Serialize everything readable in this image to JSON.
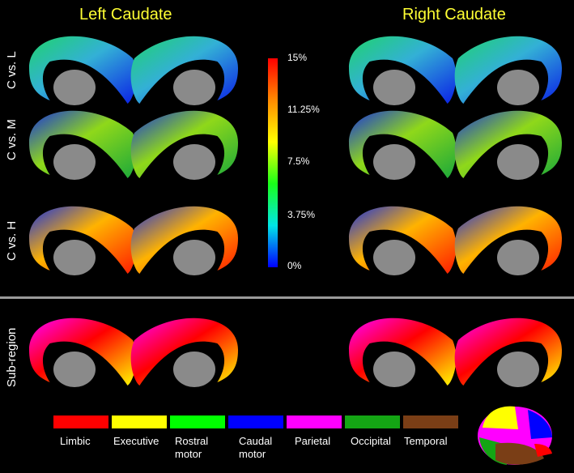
{
  "headings": {
    "left": "Left Caudate",
    "right": "Right Caudate"
  },
  "rows": [
    {
      "label": "C vs. L",
      "scheme": "low"
    },
    {
      "label": "C vs. M",
      "scheme": "mid"
    },
    {
      "label": "C vs. H",
      "scheme": "high"
    },
    {
      "label": "Sub-region",
      "scheme": "parcel"
    }
  ],
  "colorbar": {
    "ticks": [
      "15%",
      "11.25%",
      "7.5%",
      "3.75%",
      "0%"
    ],
    "colors": [
      "#ff0000",
      "#ff8a00",
      "#ffff00",
      "#19ff19",
      "#00e6e6",
      "#0000ff"
    ]
  },
  "legend": [
    {
      "label": "Limbic",
      "color": "#ff0000"
    },
    {
      "label": "Executive",
      "color": "#ffff00"
    },
    {
      "label": "Rostral motor",
      "color": "#00ff00"
    },
    {
      "label": "Caudal motor",
      "color": "#0000ff"
    },
    {
      "label": "Parietal",
      "color": "#ff00ff"
    },
    {
      "label": "Occipital",
      "color": "#14a514"
    },
    {
      "label": "Temporal",
      "color": "#7a3e16"
    }
  ]
}
